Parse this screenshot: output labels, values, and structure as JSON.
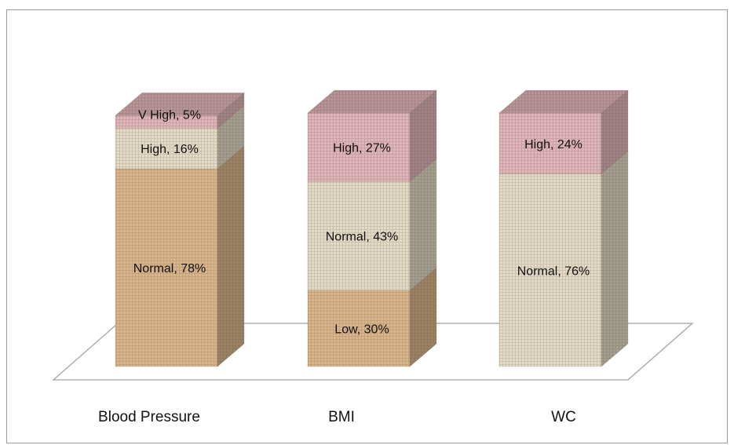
{
  "chart_data": {
    "type": "bar",
    "stacked": true,
    "three_d": true,
    "categories": [
      "Blood Pressure",
      "BMI",
      "WC"
    ],
    "stacks": [
      {
        "category": "Blood Pressure",
        "segments": [
          {
            "name": "Normal",
            "value": 78,
            "label": "Normal, 78%",
            "color": "#d9b58c"
          },
          {
            "name": "High",
            "value": 16,
            "label": "High, 16%",
            "color": "#e4dcc8"
          },
          {
            "name": "V High",
            "value": 5,
            "label": "V High, 5%",
            "color": "#e0b4bc"
          }
        ]
      },
      {
        "category": "BMI",
        "segments": [
          {
            "name": "Low",
            "value": 30,
            "label": "Low,  30%",
            "color": "#d9b58c"
          },
          {
            "name": "Normal",
            "value": 43,
            "label": "Normal, 43%",
            "color": "#e4dcc8"
          },
          {
            "name": "High",
            "value": 27,
            "label": "High, 27%",
            "color": "#e0b4bc"
          }
        ]
      },
      {
        "category": "WC",
        "segments": [
          {
            "name": "Normal",
            "value": 76,
            "label": "Normal, 76%",
            "color": "#e4dcc8"
          },
          {
            "name": "High",
            "value": 24,
            "label": "High, 24%",
            "color": "#e0b4bc"
          }
        ]
      }
    ],
    "grid": false,
    "legend": "none"
  }
}
